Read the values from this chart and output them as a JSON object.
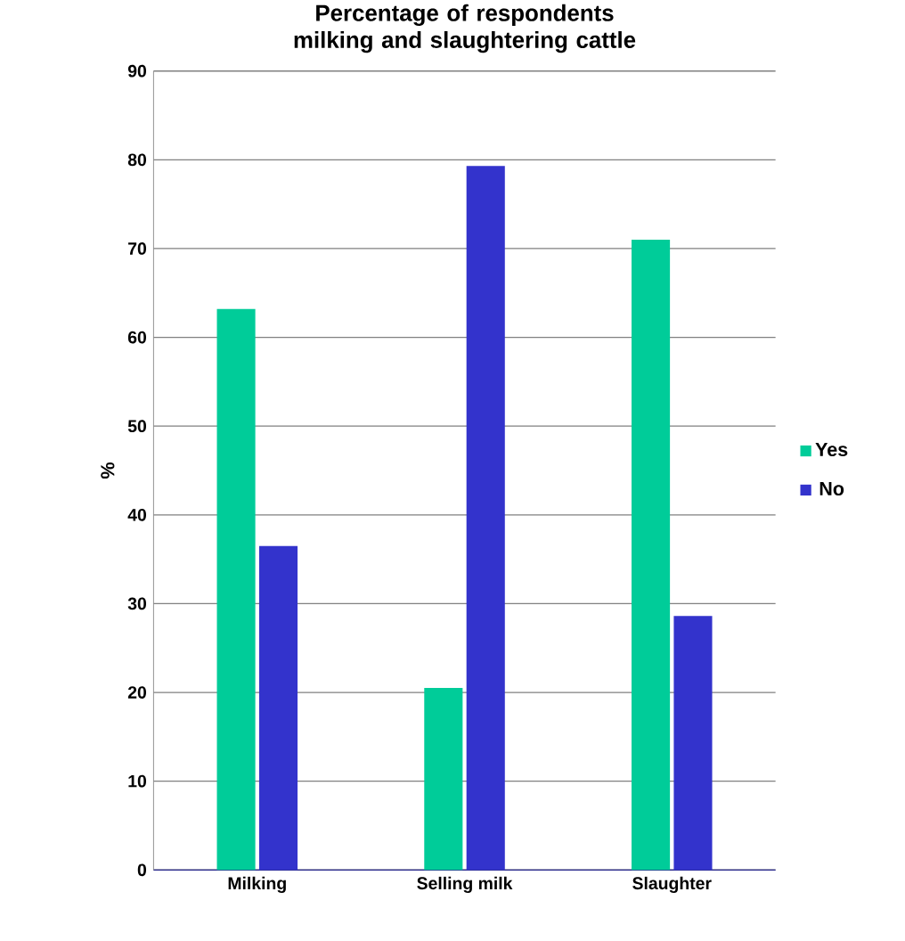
{
  "chart_data": {
    "type": "bar",
    "title": "Percentage of respondents milking and slaughtering cattle",
    "ylabel": "%",
    "categories": [
      "Milking",
      "Selling milk",
      "Slaughter"
    ],
    "series": [
      {
        "name": "Yes",
        "color": "#00cc99",
        "values": [
          63.2,
          20.5,
          71.0
        ]
      },
      {
        "name": "No",
        "color": "#3333cc",
        "values": [
          36.5,
          79.3,
          28.6
        ]
      }
    ],
    "ylim": [
      0,
      90
    ],
    "yticks": [
      0,
      10,
      20,
      30,
      40,
      50,
      60,
      70,
      80,
      90
    ],
    "grid": "y",
    "legend": "right"
  }
}
